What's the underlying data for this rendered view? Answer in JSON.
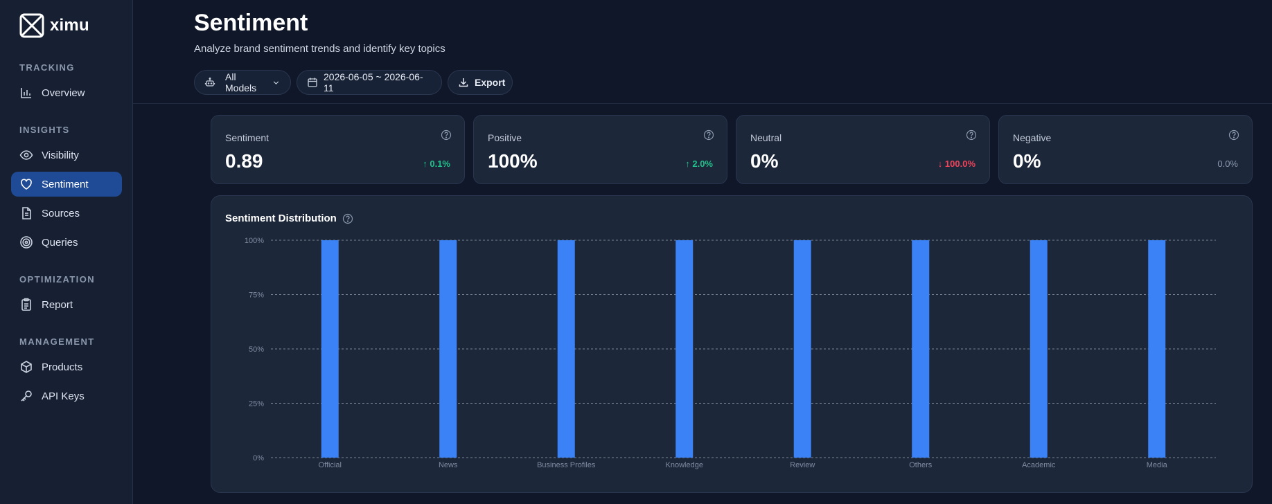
{
  "brand": {
    "name": "ximu"
  },
  "sidebar": {
    "sections": [
      {
        "title": "TRACKING",
        "items": [
          {
            "label": "Overview",
            "icon": "bar-chart-icon"
          }
        ]
      },
      {
        "title": "INSIGHTS",
        "items": [
          {
            "label": "Visibility",
            "icon": "eye-icon"
          },
          {
            "label": "Sentiment",
            "icon": "heart-icon",
            "active": true
          },
          {
            "label": "Sources",
            "icon": "document-icon"
          },
          {
            "label": "Queries",
            "icon": "target-icon"
          }
        ]
      },
      {
        "title": "OPTIMIZATION",
        "items": [
          {
            "label": "Report",
            "icon": "clipboard-icon"
          }
        ]
      },
      {
        "title": "MANAGEMENT",
        "items": [
          {
            "label": "Products",
            "icon": "box-icon"
          },
          {
            "label": "API Keys",
            "icon": "key-icon"
          }
        ]
      }
    ]
  },
  "header": {
    "title": "Sentiment",
    "subtitle": "Analyze brand sentiment trends and identify key topics",
    "model_filter": "All Models",
    "date_range": "2026-06-05 ~ 2026-06-11",
    "export_label": "Export"
  },
  "cards": [
    {
      "label": "Sentiment",
      "value": "0.89",
      "delta": "↑ 0.1%",
      "trend": "up"
    },
    {
      "label": "Positive",
      "value": "100%",
      "delta": "↑ 2.0%",
      "trend": "up"
    },
    {
      "label": "Neutral",
      "value": "0%",
      "delta": "↓ 100.0%",
      "trend": "down"
    },
    {
      "label": "Negative",
      "value": "0%",
      "delta": "0.0%",
      "trend": "flat"
    }
  ],
  "colors": {
    "accent": "#3b82f6",
    "up": "#22c08a",
    "down": "#f0435a",
    "active_nav": "#1f4a95"
  },
  "chart_data": {
    "type": "bar",
    "title": "Sentiment Distribution",
    "categories": [
      "Official",
      "News",
      "Business Profiles",
      "Knowledge",
      "Review",
      "Others",
      "Academic",
      "Media"
    ],
    "values": [
      100,
      100,
      100,
      100,
      100,
      100,
      100,
      100
    ],
    "ylim": [
      0,
      100
    ],
    "yticks": [
      "0%",
      "25%",
      "50%",
      "75%",
      "100%"
    ],
    "grid": true,
    "legend": "none"
  }
}
